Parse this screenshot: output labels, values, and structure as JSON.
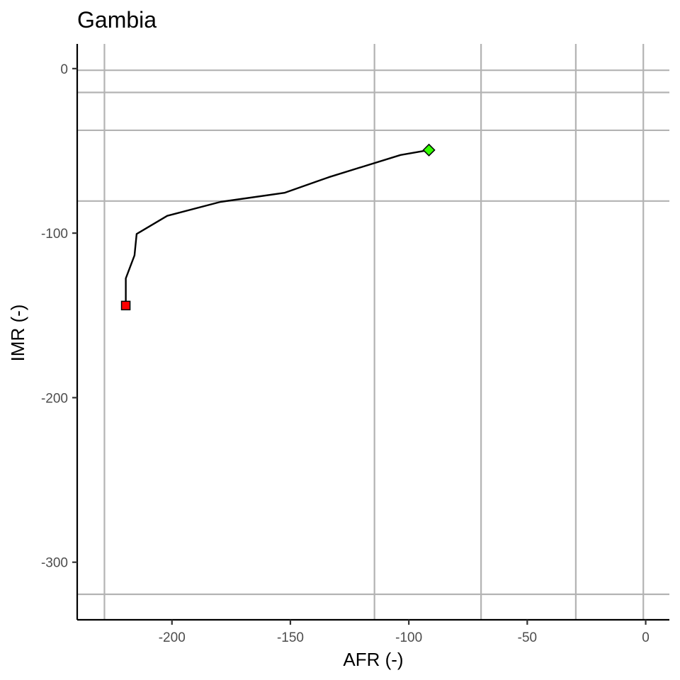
{
  "chart_data": {
    "type": "line",
    "title": "Gambia",
    "xlabel": "AFR (-)",
    "ylabel": "IMR (-)",
    "xlim": [
      -240,
      10
    ],
    "ylim": [
      -335,
      15
    ],
    "x_ticks": [
      -200,
      -150,
      -100,
      -50,
      0
    ],
    "y_ticks": [
      0,
      -100,
      -200,
      -300
    ],
    "x_ticklabels": [
      "-200",
      "-150",
      "-100",
      "-50",
      "0"
    ],
    "y_ticklabels": [
      "0",
      "-100",
      "-200",
      "-300"
    ],
    "grid_x": [
      -228.5,
      -114.5,
      -69.5,
      -29.5,
      -1
    ],
    "grid_y": [
      -1,
      -14.5,
      -37.5,
      -80.5,
      -319.5
    ],
    "grid": true,
    "series": [
      {
        "x": [
          -219.5,
          -219.5,
          -215.8,
          -214.9,
          -202,
          -179.5,
          -152.5,
          -133.8,
          -103.5,
          -91.5
        ],
        "y": [
          -144,
          -127.5,
          -113.5,
          -100.5,
          -89.5,
          -81,
          -75.5,
          -66,
          -52.5,
          -49.5
        ],
        "color": "#000000"
      }
    ],
    "markers": [
      {
        "x": -219.5,
        "y": -144,
        "shape": "square",
        "color": "#ff0000"
      },
      {
        "x": -91.5,
        "y": -49.5,
        "shape": "diamond",
        "color": "#33ff00"
      }
    ]
  }
}
